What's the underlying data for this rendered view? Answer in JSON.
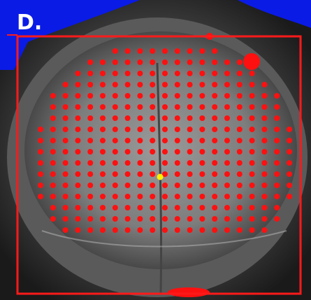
{
  "panel_label": "D."
}
